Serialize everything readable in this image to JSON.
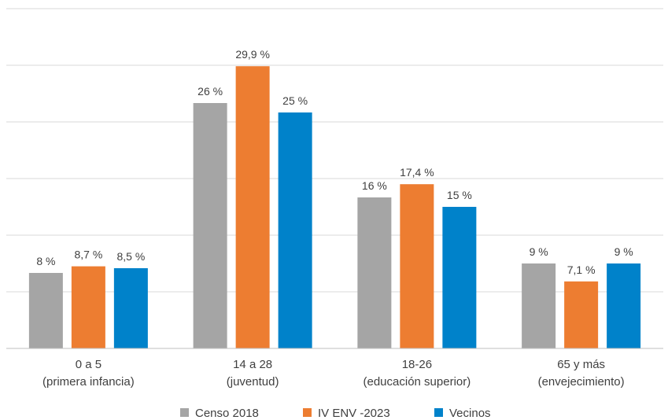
{
  "chart_data": {
    "type": "bar",
    "title": "",
    "xlabel": "",
    "ylabel": "",
    "ylim": [
      0,
      36
    ],
    "grid": true,
    "legend_position": "bottom",
    "categories": [
      [
        "0 a 5",
        "(primera infancia)"
      ],
      [
        "14 a 28",
        "(juventud)"
      ],
      [
        "18-26",
        "(educación superior)"
      ],
      [
        "65 y más",
        "(envejecimiento)"
      ]
    ],
    "series": [
      {
        "name": "Censo 2018",
        "color": "#A5A5A5",
        "values": [
          8,
          26,
          16,
          9
        ],
        "labels": [
          "8 %",
          "26 %",
          "16 %",
          "9 %"
        ]
      },
      {
        "name": "IV ENV -2023",
        "color": "#ED7D31",
        "values": [
          8.7,
          29.9,
          17.4,
          7.1
        ],
        "labels": [
          "8,7 %",
          "29,9 %",
          "17,4 %",
          "7,1 %"
        ]
      },
      {
        "name": "Vecinos",
        "color": "#0082CA",
        "values": [
          8.5,
          25,
          15,
          9
        ],
        "labels": [
          "8,5 %",
          "25 %",
          "15 %",
          "9 %"
        ]
      }
    ]
  }
}
